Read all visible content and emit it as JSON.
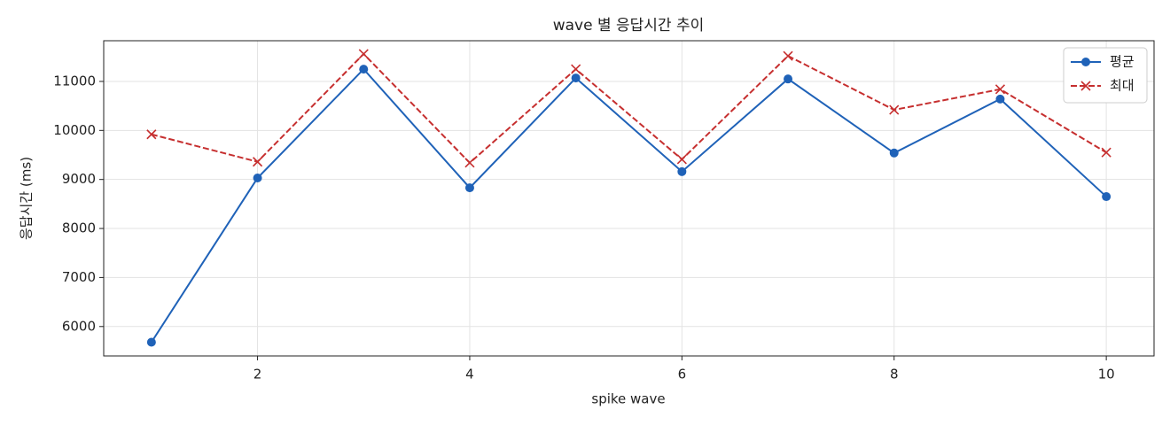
{
  "chart_data": {
    "type": "line",
    "title": "wave 별 응답시간 추이",
    "x_label": "spike wave",
    "y_label": "응답시간 (ms)",
    "x": [
      1,
      2,
      3,
      4,
      5,
      6,
      7,
      8,
      9,
      10
    ],
    "series": [
      {
        "name": "평균",
        "color": "#1f62b8",
        "marker": "o",
        "linestyle": "solid",
        "values": [
          5680,
          9030,
          11250,
          8830,
          11070,
          9160,
          11050,
          9540,
          10640,
          8650
        ]
      },
      {
        "name": "최대",
        "color": "#c62f2f",
        "marker": "x",
        "linestyle": "dashed",
        "values": [
          9920,
          9360,
          11560,
          9340,
          11250,
          9410,
          11520,
          10420,
          10840,
          9550
        ]
      }
    ],
    "xlim": [
      0.55,
      10.45
    ],
    "xticks": [
      2,
      4,
      6,
      8,
      10
    ],
    "ylim": [
      5400,
      11830
    ],
    "yticks": [
      6000,
      7000,
      8000,
      9000,
      10000,
      11000
    ],
    "grid": true,
    "legend": "upper right"
  }
}
